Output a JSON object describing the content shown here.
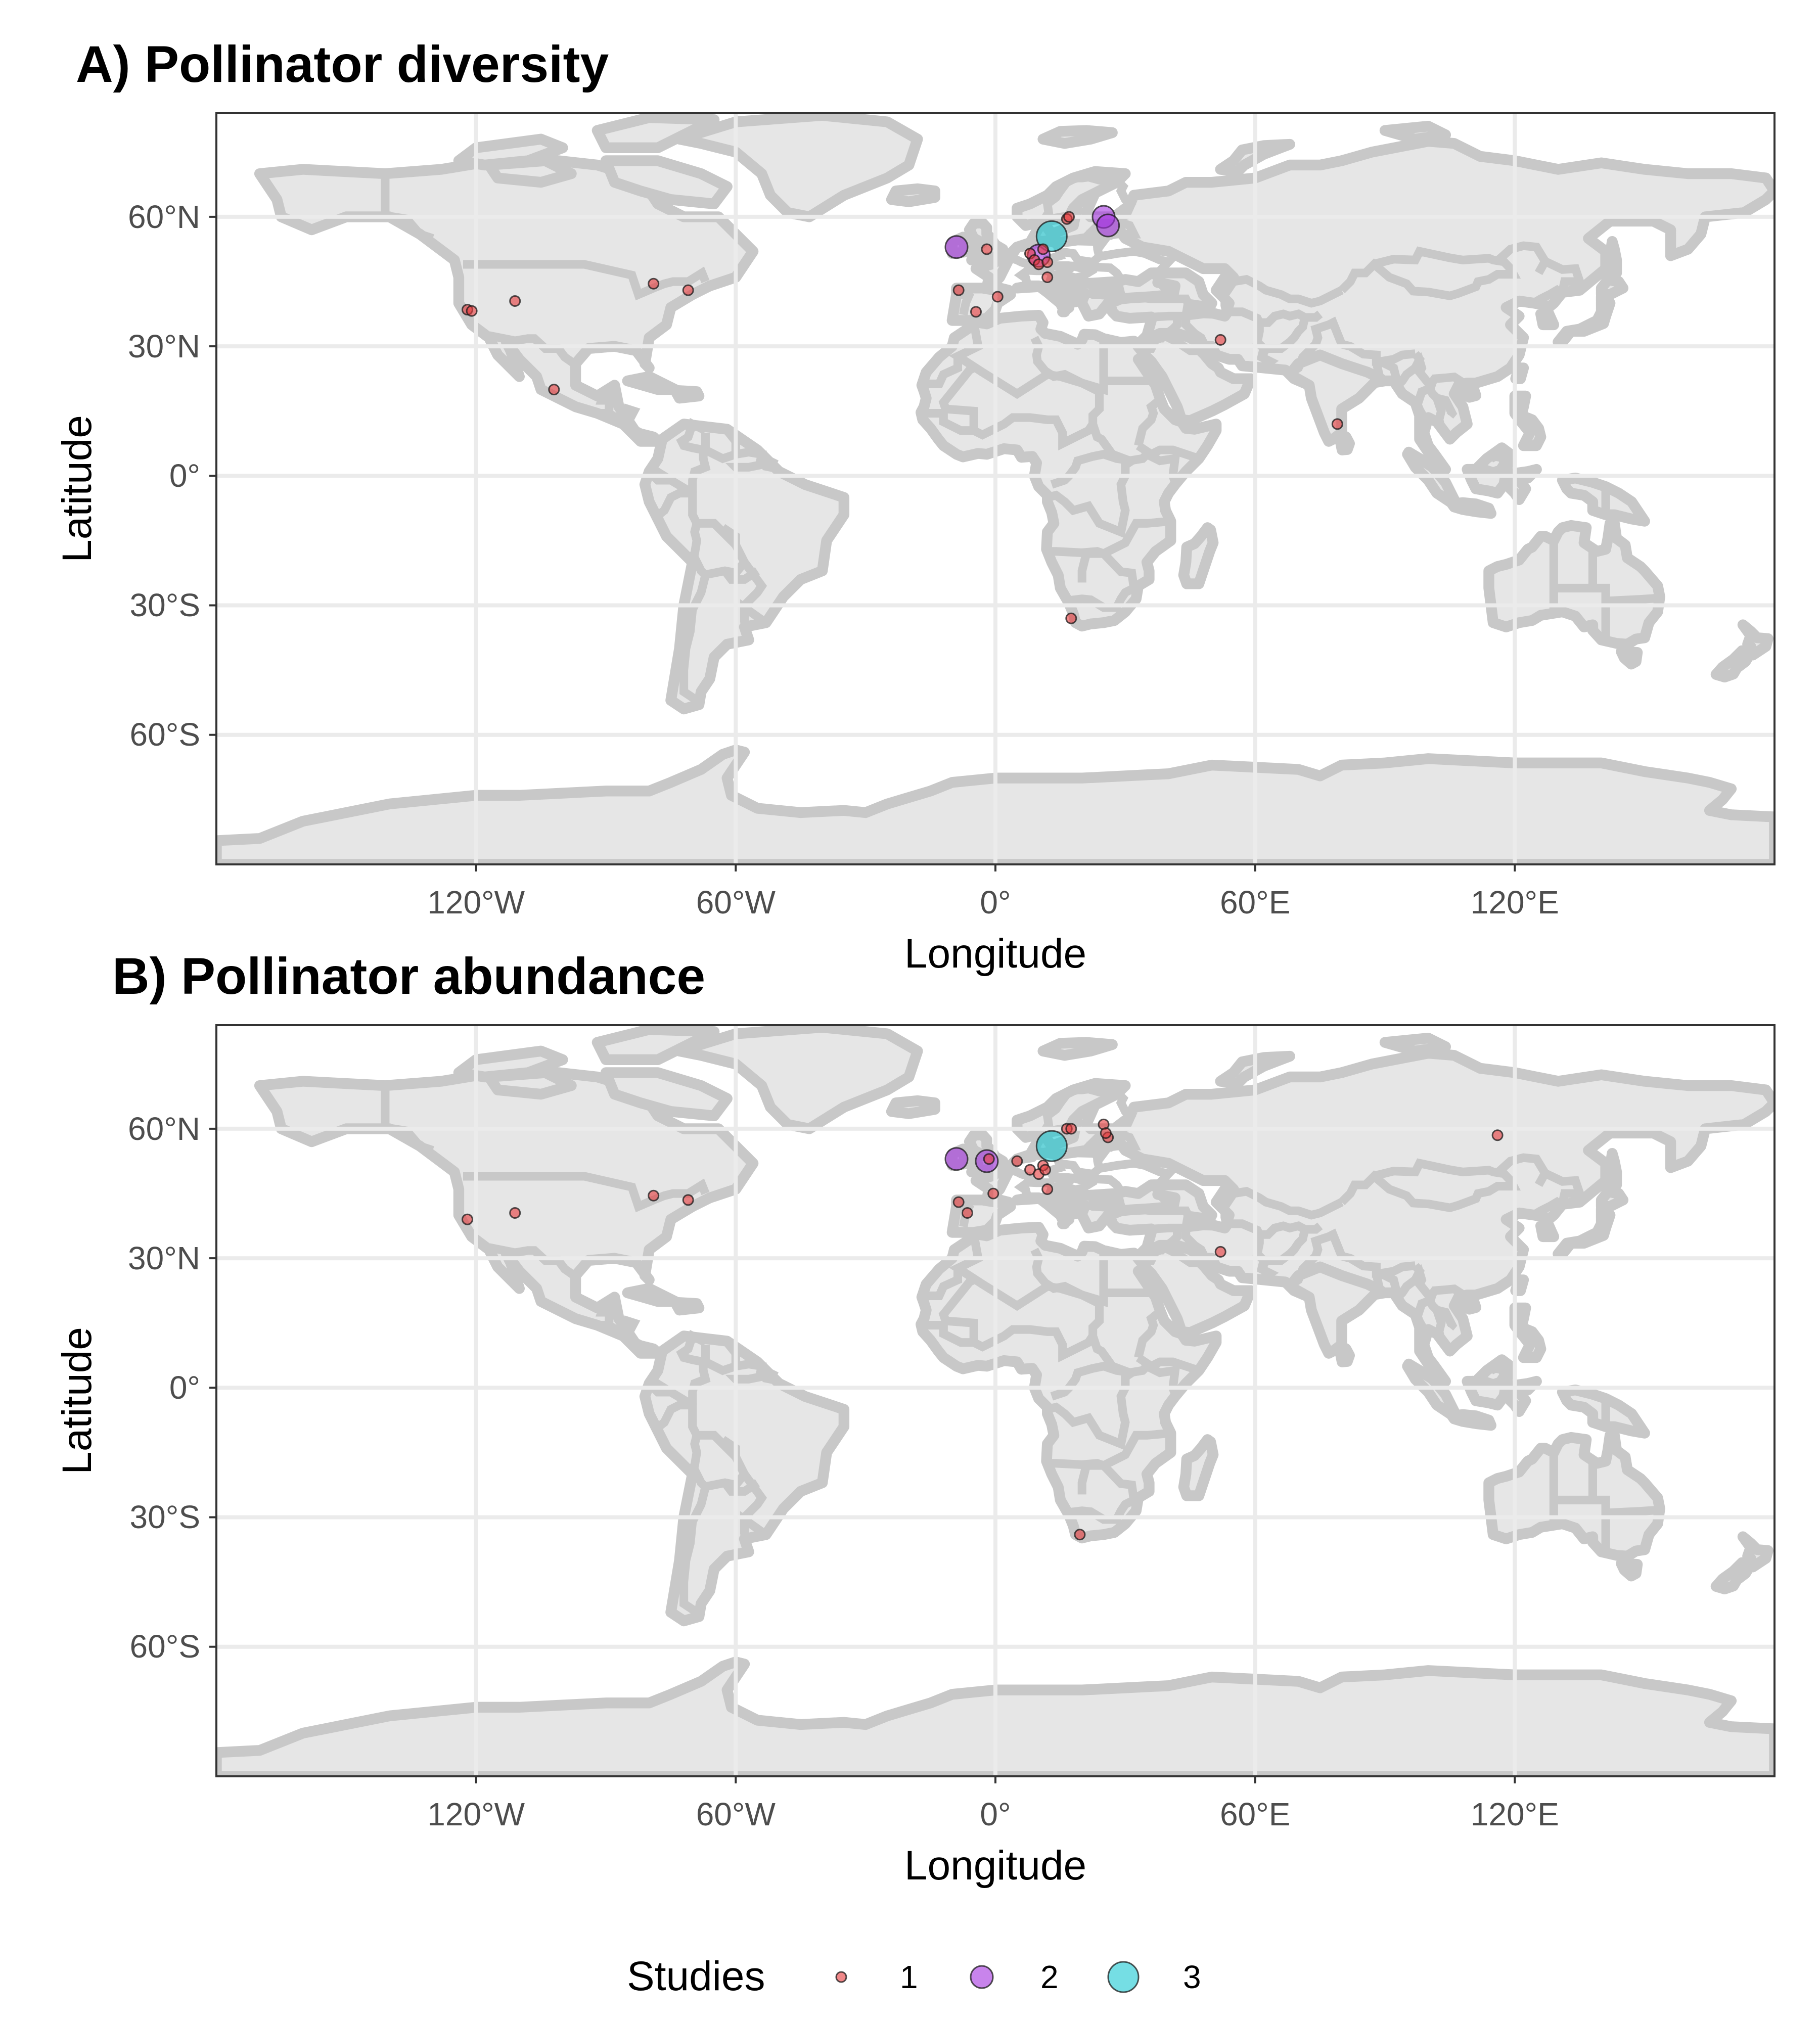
{
  "chart_data": [
    {
      "type": "scatter",
      "title": "A) Pollinator diversity",
      "xlabel": "Longitude",
      "ylabel": "Latitude",
      "xlim": [
        -180,
        180
      ],
      "ylim": [
        -90,
        84
      ],
      "x_ticks": [
        -120,
        -60,
        0,
        60,
        120
      ],
      "x_tick_labels": [
        "120°W",
        "60°W",
        "0°",
        "60°E",
        "120°E"
      ],
      "y_ticks": [
        60,
        30,
        0,
        -30,
        -60
      ],
      "y_tick_labels": [
        "60°N",
        "30°N",
        "0°",
        "30°S",
        "60°S"
      ],
      "grid": true,
      "basemap": "world countries",
      "points": [
        {
          "lon": -122,
          "lat": 38.5,
          "studies": 1
        },
        {
          "lon": -121,
          "lat": 38.2,
          "studies": 1
        },
        {
          "lon": -111,
          "lat": 40.5,
          "studies": 1
        },
        {
          "lon": -102,
          "lat": 20,
          "studies": 1
        },
        {
          "lon": -79,
          "lat": 44.5,
          "studies": 1
        },
        {
          "lon": -71,
          "lat": 43,
          "studies": 1
        },
        {
          "lon": -8.5,
          "lat": 43,
          "studies": 1
        },
        {
          "lon": -4.5,
          "lat": 38,
          "studies": 1
        },
        {
          "lon": 0.5,
          "lat": 41.5,
          "studies": 1
        },
        {
          "lon": -2,
          "lat": 52.5,
          "studies": 1
        },
        {
          "lon": -9,
          "lat": 53,
          "studies": 2
        },
        {
          "lon": 8,
          "lat": 51.5,
          "studies": 1
        },
        {
          "lon": 9,
          "lat": 50,
          "studies": 1
        },
        {
          "lon": 10,
          "lat": 51,
          "studies": 2
        },
        {
          "lon": 11,
          "lat": 52.5,
          "studies": 1
        },
        {
          "lon": 10,
          "lat": 49,
          "studies": 1
        },
        {
          "lon": 12,
          "lat": 49.5,
          "studies": 1
        },
        {
          "lon": 12,
          "lat": 46,
          "studies": 1
        },
        {
          "lon": 13,
          "lat": 55.5,
          "studies": 3
        },
        {
          "lon": 16.5,
          "lat": 59.5,
          "studies": 1
        },
        {
          "lon": 17,
          "lat": 60,
          "studies": 1
        },
        {
          "lon": 25,
          "lat": 60,
          "studies": 2
        },
        {
          "lon": 26,
          "lat": 58,
          "studies": 2
        },
        {
          "lon": 52,
          "lat": 31.5,
          "studies": 1
        },
        {
          "lon": 79,
          "lat": 12,
          "studies": 1
        },
        {
          "lon": 17.5,
          "lat": -33,
          "studies": 1
        }
      ]
    },
    {
      "type": "scatter",
      "title": "B) Pollinator abundance",
      "xlabel": "Longitude",
      "ylabel": "Latitude",
      "xlim": [
        -180,
        180
      ],
      "ylim": [
        -90,
        84
      ],
      "x_ticks": [
        -120,
        -60,
        0,
        60,
        120
      ],
      "x_tick_labels": [
        "120°W",
        "60°W",
        "0°",
        "60°E",
        "120°E"
      ],
      "y_ticks": [
        60,
        30,
        0,
        -30,
        -60
      ],
      "y_tick_labels": [
        "60°N",
        "30°N",
        "0°",
        "30°S",
        "60°S"
      ],
      "grid": true,
      "basemap": "world countries",
      "points": [
        {
          "lon": -122,
          "lat": 39,
          "studies": 1
        },
        {
          "lon": -111,
          "lat": 40.5,
          "studies": 1
        },
        {
          "lon": -79,
          "lat": 44.5,
          "studies": 1
        },
        {
          "lon": -71,
          "lat": 43.5,
          "studies": 1
        },
        {
          "lon": -8.5,
          "lat": 43,
          "studies": 1
        },
        {
          "lon": -6.5,
          "lat": 40.5,
          "studies": 1
        },
        {
          "lon": -9,
          "lat": 53,
          "studies": 2
        },
        {
          "lon": -2,
          "lat": 52.5,
          "studies": 2
        },
        {
          "lon": -1.5,
          "lat": 53,
          "studies": 1
        },
        {
          "lon": -0.5,
          "lat": 45,
          "studies": 1
        },
        {
          "lon": 5,
          "lat": 52.5,
          "studies": 1
        },
        {
          "lon": 8,
          "lat": 50.5,
          "studies": 1
        },
        {
          "lon": 10,
          "lat": 49.5,
          "studies": 1
        },
        {
          "lon": 11,
          "lat": 51.5,
          "studies": 1
        },
        {
          "lon": 12,
          "lat": 46,
          "studies": 1
        },
        {
          "lon": 11.5,
          "lat": 50.5,
          "studies": 1
        },
        {
          "lon": 13,
          "lat": 56,
          "studies": 3
        },
        {
          "lon": 16.5,
          "lat": 60,
          "studies": 1
        },
        {
          "lon": 17.5,
          "lat": 60,
          "studies": 1
        },
        {
          "lon": 25,
          "lat": 61,
          "studies": 1
        },
        {
          "lon": 26,
          "lat": 58,
          "studies": 1
        },
        {
          "lon": 25.5,
          "lat": 59,
          "studies": 1
        },
        {
          "lon": 52,
          "lat": 31.5,
          "studies": 1
        },
        {
          "lon": 116,
          "lat": 58.5,
          "studies": 1
        },
        {
          "lon": 19.5,
          "lat": -34,
          "studies": 1
        }
      ]
    }
  ],
  "legend": {
    "title": "Studies",
    "position": "bottom",
    "entries": [
      {
        "label": "1",
        "studies": 1,
        "color": "#e6393a"
      },
      {
        "label": "2",
        "studies": 2,
        "color": "#a432e0"
      },
      {
        "label": "3",
        "studies": 3,
        "color": "#19c8d2"
      }
    ]
  }
}
